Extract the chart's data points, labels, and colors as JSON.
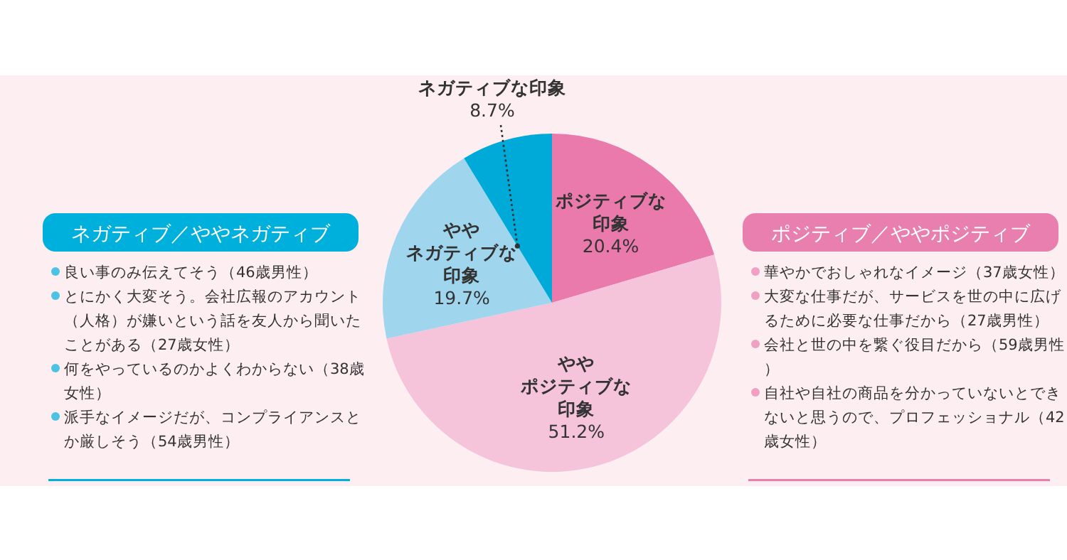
{
  "chart_data": {
    "type": "pie",
    "categories": [
      "ポジティブな印象",
      "ややポジティブな印象",
      "ややネガティブな印象",
      "ネガティブな印象"
    ],
    "values": [
      20.4,
      51.2,
      19.7,
      8.7
    ],
    "value_labels": [
      "20.4%",
      "51.2%",
      "19.7%",
      "8.7%"
    ],
    "colors": [
      "#e97aab",
      "#f5c4da",
      "#9fd6ee",
      "#00aad8"
    ],
    "annotations": [
      "ネガティブ／ややネガティブ",
      "良い事のみ伝えてそう（46歳男性）",
      "とにかく大変そう。会社広報のアカウント（人格）が嫌いという話を友人から聞いたことがある（27歳女性）",
      "何をやっているのかよくわからない（38歳女性）",
      "派手なイメージだが、コンプライアンスとか厳しそう（54歳男性）",
      "ポジティブ／ややポジティブ",
      "華やかでおしゃれなイメージ（37歳女性）",
      "大変な仕事だが、サービスを世の中に広げるために必要な仕事だから（27歳男性）",
      "会社と世の中を繋ぐ役目だから（59歳男性）",
      "自社や自社の商品を分かっていないとできないと思うので、プロフェッショナル（42歳女性）"
    ]
  }
}
